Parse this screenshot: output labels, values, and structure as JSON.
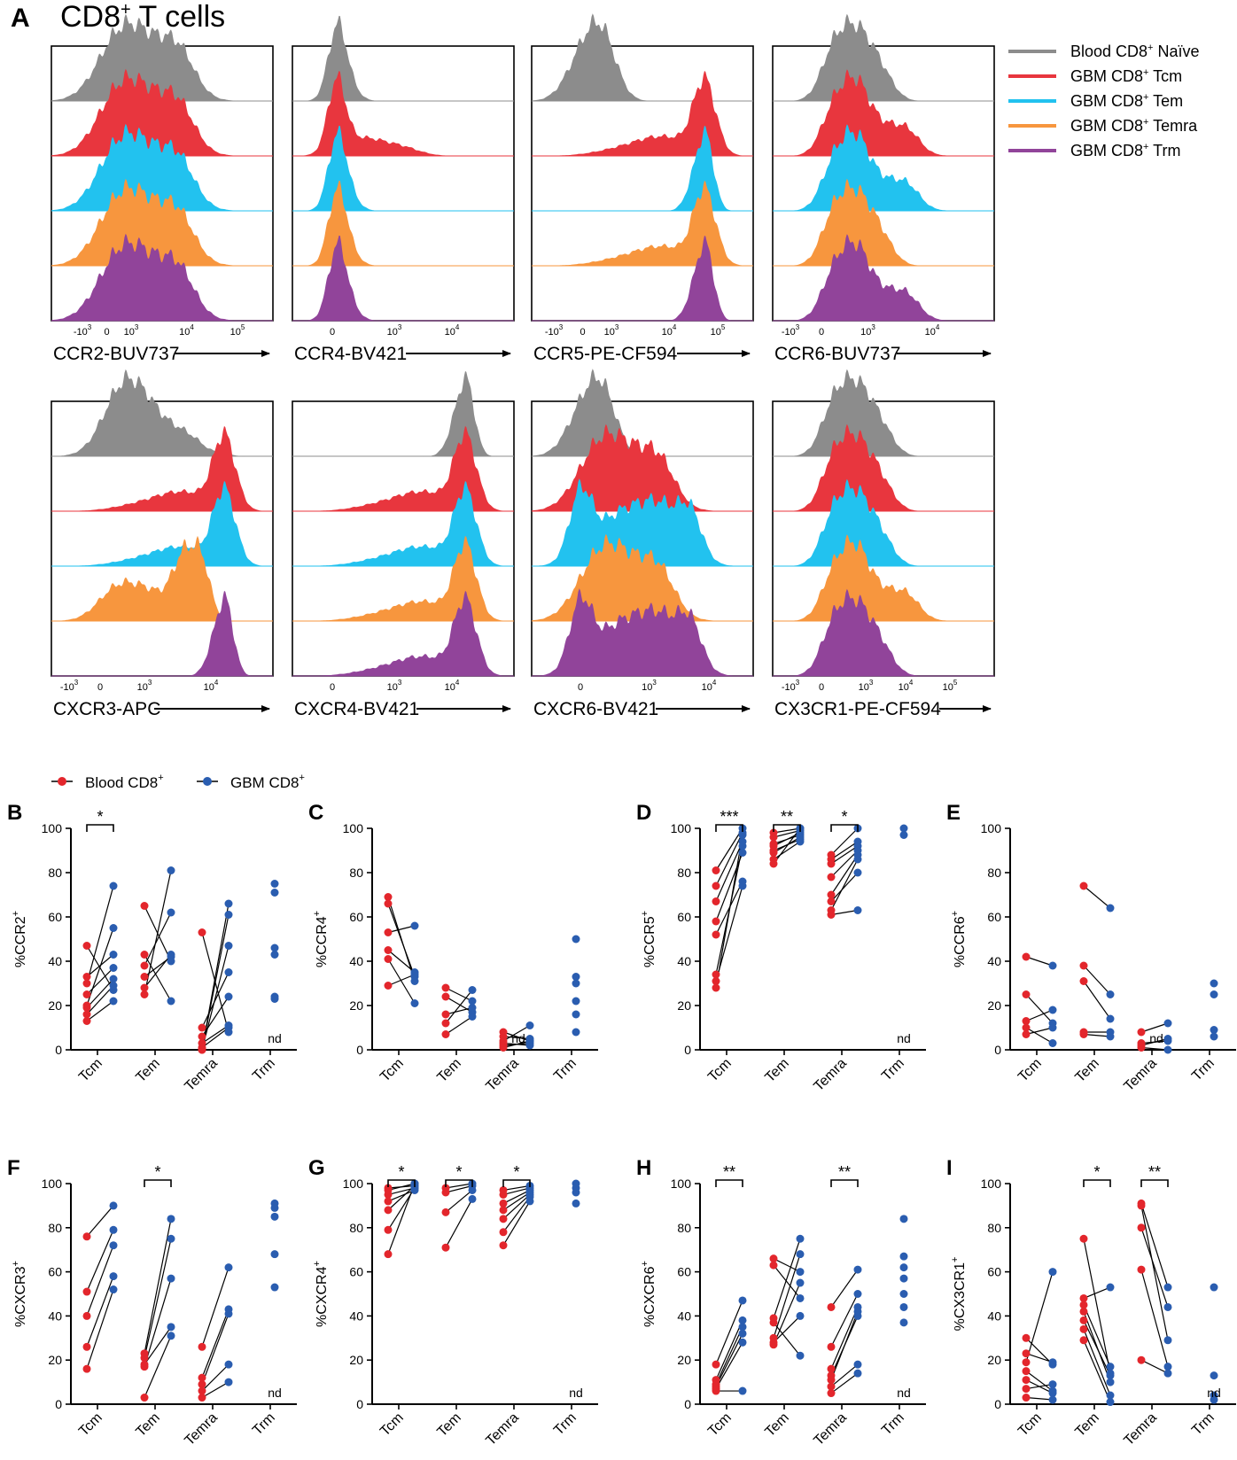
{
  "panel_a": {
    "letter": "A",
    "title_main": "CD8",
    "title_sup": "+",
    "title_rest": " T cells"
  },
  "colors": {
    "naive": "#8c8c8c",
    "tcm": "#e8363e",
    "tem": "#22c2ef",
    "temra": "#f7963e",
    "trm": "#91449a",
    "blood_dot": "#e3262c",
    "gbm_dot": "#2a5db0"
  },
  "legend_a": [
    {
      "pre": "Blood CD8",
      "sup": "+",
      "post": " Naïve",
      "color_key": "naive"
    },
    {
      "pre": "GBM CD8",
      "sup": "+",
      "post": " Tcm",
      "color_key": "tcm"
    },
    {
      "pre": "GBM CD8",
      "sup": "+",
      "post": " Tem",
      "color_key": "tem"
    },
    {
      "pre": "GBM CD8",
      "sup": "+",
      "post": " Temra",
      "color_key": "temra"
    },
    {
      "pre": "GBM CD8",
      "sup": "+",
      "post": " Trm",
      "color_key": "trm"
    }
  ],
  "legend_b": [
    {
      "pre": "Blood CD8",
      "sup": "+",
      "color_key": "blood_dot"
    },
    {
      "pre": "GBM CD8",
      "sup": "+",
      "color_key": "gbm_dot"
    }
  ],
  "chart_data": [
    {
      "type": "histogram",
      "marker": "CCR2-BUV737",
      "ticks": [
        {
          "b": "-10",
          "e": "3"
        },
        {
          "b": "0",
          "e": ""
        },
        {
          "b": "10",
          "e": "3"
        },
        {
          "b": "10",
          "e": "4"
        },
        {
          "b": "10",
          "e": "5"
        }
      ],
      "profiles": [
        "broad",
        "broad",
        "broad",
        "broad",
        "broad"
      ]
    },
    {
      "type": "histogram",
      "marker": "CCR4-BV421",
      "ticks": [
        {
          "b": "0",
          "e": ""
        },
        {
          "b": "10",
          "e": "3"
        },
        {
          "b": "10",
          "e": "4"
        }
      ],
      "profiles": [
        "narrow",
        "narrow-tail",
        "narrow",
        "narrow",
        "narrow"
      ]
    },
    {
      "type": "histogram",
      "marker": "CCR5-PE-CF594",
      "ticks": [
        {
          "b": "-10",
          "e": "3"
        },
        {
          "b": "0",
          "e": ""
        },
        {
          "b": "10",
          "e": "3"
        },
        {
          "b": "10",
          "e": "4"
        },
        {
          "b": "10",
          "e": "5"
        }
      ],
      "profiles": [
        "low",
        "high-tail",
        "high",
        "high-tail",
        "high"
      ]
    },
    {
      "type": "histogram",
      "marker": "CCR6-BUV737",
      "ticks": [
        {
          "b": "-10",
          "e": "3"
        },
        {
          "b": "0",
          "e": ""
        },
        {
          "b": "10",
          "e": "3"
        },
        {
          "b": "10",
          "e": "4"
        }
      ],
      "profiles": [
        "mid",
        "mid-tail",
        "mid-tail",
        "mid",
        "mid-tail"
      ]
    },
    {
      "type": "histogram",
      "marker": "CXCR3-APC",
      "ticks": [
        {
          "b": "-10",
          "e": "3"
        },
        {
          "b": "0",
          "e": ""
        },
        {
          "b": "10",
          "e": "3"
        },
        {
          "b": "10",
          "e": "4"
        }
      ],
      "profiles": [
        "broad-low",
        "high-tail",
        "high-tail",
        "broad-high",
        "high"
      ]
    },
    {
      "type": "histogram",
      "marker": "CXCR4-BV421",
      "ticks": [
        {
          "b": "0",
          "e": ""
        },
        {
          "b": "10",
          "e": "3"
        },
        {
          "b": "10",
          "e": "4"
        }
      ],
      "profiles": [
        "high",
        "high-tail",
        "high-tail",
        "high-tail",
        "high-tail"
      ]
    },
    {
      "type": "histogram",
      "marker": "CXCR6-BV421",
      "ticks": [
        {
          "b": "0",
          "e": ""
        },
        {
          "b": "10",
          "e": "3"
        },
        {
          "b": "10",
          "e": "4"
        }
      ],
      "profiles": [
        "low",
        "low-tail",
        "plateau",
        "low-tail",
        "plateau"
      ]
    },
    {
      "type": "histogram",
      "marker": "CX3CR1-PE-CF594",
      "ticks": [
        {
          "b": "-10",
          "e": "3"
        },
        {
          "b": "0",
          "e": ""
        },
        {
          "b": "10",
          "e": "3"
        },
        {
          "b": "10",
          "e": "4"
        },
        {
          "b": "10",
          "e": "5"
        }
      ],
      "profiles": [
        "mid",
        "mid",
        "mid",
        "mid-tail",
        "mid"
      ]
    },
    {
      "type": "paired-dot",
      "letter": "B",
      "ylabel_pre": "%CCR2",
      "ylabel_sup": "+",
      "ylim": [
        0,
        100
      ],
      "yticks": [
        "0",
        "20",
        "40",
        "60",
        "80",
        "100"
      ],
      "categories": [
        "Tcm",
        "Tem",
        "Temra",
        "Trm"
      ],
      "pairs": [
        [
          [
            47,
            27
          ],
          [
            33,
            43
          ],
          [
            25,
            37
          ],
          [
            20,
            55
          ],
          [
            19,
            32
          ],
          [
            16,
            29
          ],
          [
            13,
            22
          ],
          [
            30,
            74
          ]
        ],
        [
          [
            65,
            40
          ],
          [
            43,
            22
          ],
          [
            38,
            62
          ],
          [
            33,
            42
          ],
          [
            28,
            43
          ],
          [
            25,
            81
          ]
        ],
        [
          [
            53,
            8
          ],
          [
            10,
            35
          ],
          [
            6,
            24
          ],
          [
            3,
            11
          ],
          [
            1,
            10
          ],
          [
            0,
            47
          ],
          [
            0,
            66
          ],
          [
            0,
            61
          ]
        ],
        []
      ],
      "trm": [
        75,
        71,
        46,
        43,
        24,
        23
      ],
      "nd": [
        false,
        false,
        false,
        true
      ],
      "sig": [
        {
          "cat": 0,
          "label": "*"
        }
      ]
    },
    {
      "type": "paired-dot",
      "letter": "C",
      "ylabel_pre": "%CCR4",
      "ylabel_sup": "+",
      "ylim": [
        0,
        100
      ],
      "yticks": [
        "0",
        "20",
        "40",
        "60",
        "80",
        "100"
      ],
      "categories": [
        "Tcm",
        "Tem",
        "Temra",
        "Trm"
      ],
      "pairs": [
        [
          [
            69,
            31
          ],
          [
            66,
            33
          ],
          [
            53,
            56
          ],
          [
            45,
            35
          ],
          [
            41,
            21
          ],
          [
            29,
            34
          ]
        ],
        [
          [
            28,
            22
          ],
          [
            24,
            17
          ],
          [
            16,
            19
          ],
          [
            12,
            27
          ],
          [
            7,
            15
          ]
        ],
        [
          [
            8,
            4
          ],
          [
            6,
            5
          ],
          [
            4,
            11
          ],
          [
            3,
            2
          ],
          [
            2,
            3
          ],
          [
            1,
            4
          ]
        ],
        []
      ],
      "trm": [
        50,
        33,
        30,
        22,
        16,
        8
      ],
      "nd": [
        false,
        false,
        true,
        false
      ],
      "sig": []
    },
    {
      "type": "paired-dot",
      "letter": "D",
      "ylabel_pre": "%CCR5",
      "ylabel_sup": "+",
      "ylim": [
        0,
        100
      ],
      "yticks": [
        "0",
        "20",
        "40",
        "60",
        "80",
        "100"
      ],
      "categories": [
        "Tcm",
        "Tem",
        "Temra",
        "Trm"
      ],
      "pairs": [
        [
          [
            81,
            100
          ],
          [
            74,
            98
          ],
          [
            67,
            94
          ],
          [
            58,
            89
          ],
          [
            52,
            76
          ],
          [
            34,
            92
          ],
          [
            31,
            74
          ],
          [
            28,
            97
          ]
        ],
        [
          [
            98,
            100
          ],
          [
            96,
            99
          ],
          [
            93,
            97
          ],
          [
            92,
            98
          ],
          [
            90,
            95
          ],
          [
            89,
            96
          ],
          [
            86,
            94
          ],
          [
            84,
            100
          ]
        ],
        [
          [
            88,
            100
          ],
          [
            86,
            94
          ],
          [
            84,
            92
          ],
          [
            78,
            90
          ],
          [
            70,
            88
          ],
          [
            67,
            80
          ],
          [
            63,
            86
          ],
          [
            61,
            63
          ]
        ],
        []
      ],
      "trm": [
        100,
        97
      ],
      "nd": [
        false,
        false,
        false,
        true
      ],
      "sig": [
        {
          "cat": 0,
          "label": "***"
        },
        {
          "cat": 1,
          "label": "**"
        },
        {
          "cat": 2,
          "label": "*"
        }
      ]
    },
    {
      "type": "paired-dot",
      "letter": "E",
      "ylabel_pre": "%CCR6",
      "ylabel_sup": "+",
      "ylim": [
        0,
        100
      ],
      "yticks": [
        "0",
        "20",
        "40",
        "60",
        "80",
        "100"
      ],
      "categories": [
        "Tcm",
        "Tem",
        "Temra",
        "Trm"
      ],
      "pairs": [
        [
          [
            42,
            38
          ],
          [
            25,
            12
          ],
          [
            13,
            18
          ],
          [
            10,
            3
          ],
          [
            7,
            10
          ]
        ],
        [
          [
            74,
            64
          ],
          [
            38,
            25
          ],
          [
            31,
            14
          ],
          [
            8,
            8
          ],
          [
            7,
            6
          ]
        ],
        [
          [
            8,
            12
          ],
          [
            3,
            4
          ],
          [
            2,
            5
          ],
          [
            1,
            0
          ]
        ],
        []
      ],
      "trm": [
        30,
        25,
        9,
        6
      ],
      "nd": [
        false,
        false,
        true,
        false
      ],
      "sig": []
    },
    {
      "type": "paired-dot",
      "letter": "F",
      "ylabel_pre": "%CXCR3",
      "ylabel_sup": "+",
      "ylim": [
        0,
        100
      ],
      "yticks": [
        "0",
        "20",
        "40",
        "60",
        "80",
        "100"
      ],
      "categories": [
        "Tcm",
        "Tem",
        "Temra",
        "Trm"
      ],
      "pairs": [
        [
          [
            76,
            90
          ],
          [
            51,
            79
          ],
          [
            40,
            72
          ],
          [
            26,
            58
          ],
          [
            16,
            52
          ]
        ],
        [
          [
            23,
            84
          ],
          [
            21,
            75
          ],
          [
            18,
            35
          ],
          [
            17,
            57
          ],
          [
            3,
            31
          ]
        ],
        [
          [
            26,
            62
          ],
          [
            12,
            43
          ],
          [
            9,
            41
          ],
          [
            6,
            18
          ],
          [
            3,
            10
          ]
        ],
        []
      ],
      "trm": [
        91,
        89,
        85,
        68,
        53
      ],
      "nd": [
        false,
        false,
        false,
        true
      ],
      "sig": [
        {
          "cat": 1,
          "label": "*"
        }
      ]
    },
    {
      "type": "paired-dot",
      "letter": "G",
      "ylabel_pre": "%CXCR4",
      "ylabel_sup": "+",
      "ylim": [
        0,
        100
      ],
      "yticks": [
        "0",
        "20",
        "40",
        "60",
        "80",
        "100"
      ],
      "categories": [
        "Tcm",
        "Tem",
        "Temra",
        "Trm"
      ],
      "pairs": [
        [
          [
            98,
            99
          ],
          [
            97,
            100
          ],
          [
            95,
            98
          ],
          [
            92,
            97
          ],
          [
            88,
            99
          ],
          [
            79,
            98
          ],
          [
            68,
            100
          ]
        ],
        [
          [
            98,
            100
          ],
          [
            96,
            99
          ],
          [
            87,
            97
          ],
          [
            71,
            93
          ]
        ],
        [
          [
            97,
            99
          ],
          [
            95,
            98
          ],
          [
            91,
            97
          ],
          [
            88,
            96
          ],
          [
            84,
            95
          ],
          [
            78,
            94
          ],
          [
            72,
            92
          ]
        ],
        []
      ],
      "trm": [
        100,
        98,
        96,
        91
      ],
      "nd": [
        false,
        false,
        false,
        true
      ],
      "sig": [
        {
          "cat": 0,
          "label": "*"
        },
        {
          "cat": 1,
          "label": "*"
        },
        {
          "cat": 2,
          "label": "*"
        }
      ]
    },
    {
      "type": "paired-dot",
      "letter": "H",
      "ylabel_pre": "%CXCR6",
      "ylabel_sup": "+",
      "ylim": [
        0,
        100
      ],
      "yticks": [
        "0",
        "20",
        "40",
        "60",
        "80",
        "100"
      ],
      "categories": [
        "Tcm",
        "Tem",
        "Temra",
        "Trm"
      ],
      "pairs": [
        [
          [
            18,
            47
          ],
          [
            11,
            38
          ],
          [
            9,
            35
          ],
          [
            8,
            32
          ],
          [
            7,
            28
          ],
          [
            6,
            6
          ]
        ],
        [
          [
            66,
            60
          ],
          [
            63,
            48
          ],
          [
            39,
            75
          ],
          [
            37,
            22
          ],
          [
            30,
            68
          ],
          [
            28,
            40
          ],
          [
            27,
            55
          ]
        ],
        [
          [
            44,
            61
          ],
          [
            26,
            50
          ],
          [
            16,
            44
          ],
          [
            13,
            40
          ],
          [
            11,
            42
          ],
          [
            8,
            18
          ],
          [
            5,
            14
          ]
        ],
        []
      ],
      "trm": [
        84,
        67,
        62,
        57,
        50,
        44,
        37
      ],
      "nd": [
        false,
        false,
        false,
        true
      ],
      "sig": [
        {
          "cat": 0,
          "label": "**"
        },
        {
          "cat": 2,
          "label": "**"
        }
      ]
    },
    {
      "type": "paired-dot",
      "letter": "I",
      "ylabel_pre": "%CX3CR1",
      "ylabel_sup": "+",
      "ylim": [
        0,
        100
      ],
      "yticks": [
        "0",
        "20",
        "40",
        "60",
        "80",
        "100"
      ],
      "categories": [
        "Tcm",
        "Tem",
        "Temra",
        "Trm"
      ],
      "pairs": [
        [
          [
            30,
            18
          ],
          [
            23,
            19
          ],
          [
            19,
            60
          ],
          [
            15,
            6
          ],
          [
            11,
            5
          ],
          [
            7,
            9
          ],
          [
            3,
            2
          ]
        ],
        [
          [
            75,
            14
          ],
          [
            48,
            53
          ],
          [
            45,
            17
          ],
          [
            42,
            10
          ],
          [
            38,
            13
          ],
          [
            34,
            4
          ],
          [
            29,
            1
          ]
        ],
        [
          [
            91,
            53
          ],
          [
            90,
            29
          ],
          [
            80,
            44
          ],
          [
            61,
            17
          ],
          [
            20,
            14
          ]
        ],
        []
      ],
      "trm": [
        53,
        13,
        4,
        2
      ],
      "nd": [
        false,
        false,
        false,
        true
      ],
      "sig": [
        {
          "cat": 1,
          "label": "*"
        },
        {
          "cat": 2,
          "label": "**"
        }
      ]
    }
  ]
}
